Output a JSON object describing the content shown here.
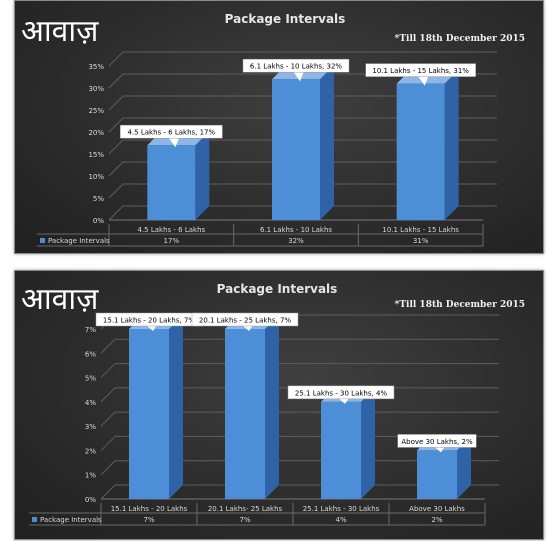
{
  "logo_text": "आवाज़",
  "colors": {
    "bar_front": "#4d8fd6",
    "bar_side": "#2f62a6",
    "bar_top": "#8db5e6",
    "grid": "#5e5e5e",
    "legend_swatch": "#4d8fd6"
  },
  "chart_data": [
    {
      "type": "bar",
      "title": "Package Intervals",
      "note": "*Till 18th December 2015",
      "categories": [
        "4.5 Lakhs - 6 Lakhs",
        "6.1 Lakhs - 10 Lakhs",
        "10.1 Lakhs - 15 Lakhs"
      ],
      "series": [
        {
          "name": "Package Intervals",
          "values": [
            17,
            32,
            31
          ]
        }
      ],
      "table_values": [
        "17%",
        "32%",
        "31%"
      ],
      "data_labels": [
        "4.5 Lakhs - 6 Lakhs, 17%",
        "6.1 Lakhs - 10 Lakhs, 32%",
        "10.1 Lakhs - 15 Lakhs, 31%"
      ],
      "y_ticks": [
        "0%",
        "5%",
        "10%",
        "15%",
        "20%",
        "25%",
        "30%",
        "35%"
      ],
      "ylim": [
        0,
        35
      ],
      "grid": true,
      "legend": "data-table"
    },
    {
      "type": "bar",
      "title": "Package Intervals",
      "note": "*Till 18th December 2015",
      "categories": [
        "15.1 Lakhs - 20 Lakhs",
        "20.1 Lakhs- 25 Lakhs",
        "25.1 Lakhs - 30 Lakhs",
        "Above 30 Lakhs"
      ],
      "series": [
        {
          "name": "Package Intervals",
          "values": [
            7,
            7,
            4,
            2
          ]
        }
      ],
      "table_values": [
        "7%",
        "7%",
        "4%",
        "2%"
      ],
      "data_labels": [
        "15.1 Lakhs - 20 Lakhs, 7%",
        "20.1 Lakhs - 25 Lakhs, 7%",
        "25.1 Lakhs - 30 Lakhs, 4%",
        "Above 30 Lakhs, 2%"
      ],
      "y_ticks": [
        "0%",
        "1%",
        "2%",
        "3%",
        "4%",
        "5%",
        "6%",
        "7%"
      ],
      "ylim": [
        0,
        7
      ],
      "grid": true,
      "legend": "data-table"
    }
  ]
}
